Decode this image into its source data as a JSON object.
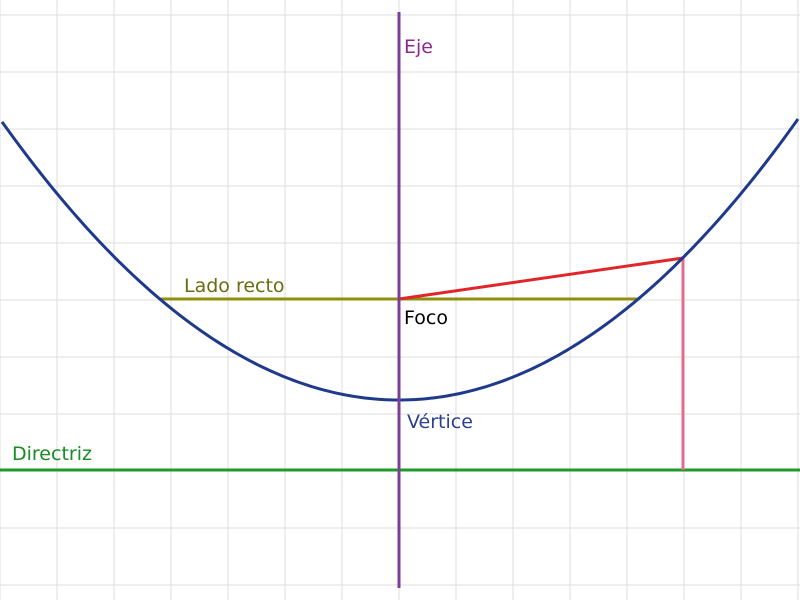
{
  "labels": {
    "axis": "Eje",
    "latus_rectum": "Lado recto",
    "focus": "Foco",
    "vertex": "Vértice",
    "directrix": "Directriz"
  },
  "colors": {
    "background": "#ffffff",
    "grid": "#dddddd",
    "parabola": "#1f3a8c",
    "axis": "#7b3f9a",
    "axis_label": "#8a2a8e",
    "latus_rectum": "#8f8f0e",
    "latus_rectum_label": "#6b6b10",
    "directrix": "#1f9a2a",
    "directrix_label": "#168c22",
    "focal_radius": "#e0262b",
    "perpendicular": "#e56b8e",
    "focus_label": "#000000",
    "vertex_label": "#2b3f95"
  }
}
